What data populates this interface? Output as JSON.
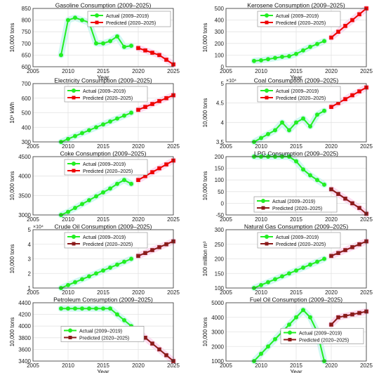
{
  "chart_data": [
    {
      "type": "line",
      "title": "Gasoline Consumption (2009–2025)",
      "xlabel": "Year",
      "ylabel": "10,000 tons",
      "xlim": [
        2005,
        2025
      ],
      "ylim": [
        600,
        850
      ],
      "xticks": [
        2005,
        2010,
        2015,
        2020,
        2025
      ],
      "yticks": [
        600,
        650,
        700,
        750,
        800,
        850
      ],
      "ytick_labels": [
        "600",
        "650",
        "700",
        "750",
        "800",
        "850"
      ],
      "grid": true,
      "legend_position": "top-right",
      "series": [
        {
          "name": "Actual (2009–2019)",
          "style": "actual-green",
          "x": [
            2009,
            2010,
            2011,
            2012,
            2013,
            2014,
            2015,
            2016,
            2017,
            2018,
            2019
          ],
          "y": [
            650,
            800,
            810,
            800,
            790,
            700,
            700,
            710,
            730,
            685,
            690
          ]
        },
        {
          "name": "Predicted (2020–2025)",
          "style": "pred-red",
          "x": [
            2020,
            2021,
            2022,
            2023,
            2024,
            2025
          ],
          "y": [
            680,
            670,
            660,
            650,
            630,
            610
          ]
        }
      ]
    },
    {
      "type": "line",
      "title": "Kerosene Consumption (2009–2025)",
      "xlabel": "Year",
      "ylabel": "10,000 tons",
      "xlim": [
        2005,
        2025
      ],
      "ylim": [
        0,
        500
      ],
      "xticks": [
        2005,
        2010,
        2015,
        2020,
        2025
      ],
      "yticks": [
        0,
        100,
        200,
        300,
        400,
        500
      ],
      "ytick_labels": [
        "0",
        "100",
        "200",
        "300",
        "400",
        "500"
      ],
      "grid": true,
      "legend_position": "top-left",
      "series": [
        {
          "name": "Actual (2009–2019)",
          "style": "actual-green",
          "x": [
            2009,
            2010,
            2011,
            2012,
            2013,
            2014,
            2015,
            2016,
            2017,
            2018,
            2019
          ],
          "y": [
            50,
            55,
            65,
            75,
            85,
            90,
            110,
            140,
            170,
            195,
            220
          ]
        },
        {
          "name": "Predicted (2020–2025)",
          "style": "pred-red",
          "x": [
            2020,
            2021,
            2022,
            2023,
            2024,
            2025
          ],
          "y": [
            250,
            300,
            350,
            400,
            450,
            500
          ]
        }
      ]
    },
    {
      "type": "line",
      "title": "Electricity Consumption (2009–2025)",
      "xlabel": "",
      "ylabel": "10⁹ kWh",
      "xlim": [
        2005,
        2025
      ],
      "ylim": [
        300,
        700
      ],
      "xticks": [
        2005,
        2010,
        2015,
        2020,
        2025
      ],
      "yticks": [
        300,
        400,
        500,
        600,
        700
      ],
      "ytick_labels": [
        "300",
        "400",
        "500",
        "600",
        "700"
      ],
      "grid": true,
      "legend_position": "top-left",
      "series": [
        {
          "name": "Actual (2009–2019)",
          "style": "actual-green",
          "x": [
            2009,
            2010,
            2011,
            2012,
            2013,
            2014,
            2015,
            2016,
            2017,
            2018,
            2019
          ],
          "y": [
            300,
            320,
            340,
            360,
            380,
            400,
            420,
            440,
            460,
            480,
            500
          ]
        },
        {
          "name": "Predicted (2020–2025)",
          "style": "pred-red",
          "x": [
            2020,
            2021,
            2022,
            2023,
            2024,
            2025
          ],
          "y": [
            520,
            540,
            560,
            580,
            600,
            620
          ]
        }
      ]
    },
    {
      "type": "line",
      "title": "Coal Consumption (2009–2025)",
      "xlabel": "",
      "ylabel": "10,000 tons",
      "xlim": [
        2005,
        2025
      ],
      "ylim": [
        3.5,
        5
      ],
      "axis_multiplier": "×10⁴",
      "xticks": [
        2005,
        2010,
        2015,
        2020,
        2025
      ],
      "yticks": [
        3.5,
        4,
        4.5,
        5
      ],
      "ytick_labels": [
        "3.5",
        "4",
        "4.5",
        "5"
      ],
      "grid": true,
      "legend_position": "top-left",
      "series": [
        {
          "name": "Actual (2009–2019)",
          "style": "actual-green",
          "x": [
            2009,
            2010,
            2011,
            2012,
            2013,
            2014,
            2015,
            2016,
            2017,
            2018,
            2019
          ],
          "y": [
            3.5,
            3.6,
            3.7,
            3.8,
            4.0,
            3.8,
            4.0,
            4.1,
            3.9,
            4.2,
            4.3
          ]
        },
        {
          "name": "Predicted (2020–2025)",
          "style": "pred-red",
          "x": [
            2020,
            2021,
            2022,
            2023,
            2024,
            2025
          ],
          "y": [
            4.4,
            4.5,
            4.6,
            4.7,
            4.8,
            4.9
          ]
        }
      ]
    },
    {
      "type": "line",
      "title": "Coke Consumption (2009–2025)",
      "xlabel": "",
      "ylabel": "10,000 tons",
      "xlim": [
        2005,
        2025
      ],
      "ylim": [
        3000,
        4500
      ],
      "xticks": [
        2005,
        2010,
        2015,
        2020,
        2025
      ],
      "yticks": [
        3000,
        3500,
        4000,
        4500
      ],
      "ytick_labels": [
        "3000",
        "3500",
        "4000",
        "4500"
      ],
      "grid": true,
      "legend_position": "top-left",
      "series": [
        {
          "name": "Actual (2009–2019)",
          "style": "actual-green",
          "x": [
            2009,
            2010,
            2011,
            2012,
            2013,
            2014,
            2015,
            2016,
            2017,
            2018,
            2019
          ],
          "y": [
            3000,
            3080,
            3180,
            3280,
            3380,
            3480,
            3580,
            3680,
            3800,
            3900,
            3800
          ]
        },
        {
          "name": "Predicted (2020–2025)",
          "style": "pred-red",
          "x": [
            2020,
            2021,
            2022,
            2023,
            2024,
            2025
          ],
          "y": [
            3900,
            4000,
            4100,
            4200,
            4300,
            4400
          ]
        }
      ]
    },
    {
      "type": "line",
      "title": "LPG Consumption (2009–2025)",
      "xlabel": "",
      "ylabel": "10,000 tons",
      "xlim": [
        2005,
        2025
      ],
      "ylim": [
        -50,
        200
      ],
      "xticks": [
        2005,
        2010,
        2015,
        2020,
        2025
      ],
      "yticks": [
        -50,
        0,
        50,
        100,
        150,
        200
      ],
      "ytick_labels": [
        "-50",
        "0",
        "50",
        "100",
        "150",
        "200"
      ],
      "grid": true,
      "legend_position": "bottom-left",
      "series": [
        {
          "name": "Actual (2009–2019)",
          "style": "actual-green",
          "x": [
            2009,
            2010,
            2011,
            2012,
            2013,
            2014,
            2015,
            2016,
            2017,
            2018,
            2019
          ],
          "y": [
            200,
            200,
            200,
            200,
            200,
            200,
            180,
            145,
            120,
            100,
            80
          ]
        },
        {
          "name": "Predicted (2020–2025)",
          "style": "pred-maroon",
          "x": [
            2020,
            2021,
            2022,
            2023,
            2024,
            2025
          ],
          "y": [
            60,
            40,
            20,
            0,
            -20,
            -45
          ]
        }
      ]
    },
    {
      "type": "line",
      "title": "Crude Oil Consumption (2009–2025)",
      "xlabel": "",
      "ylabel": "10,000 tons",
      "xlim": [
        2005,
        2025
      ],
      "ylim": [
        1,
        5
      ],
      "axis_multiplier": "×10⁴",
      "xticks": [
        2005,
        2010,
        2015,
        2020,
        2025
      ],
      "yticks": [
        1,
        2,
        3,
        4,
        5
      ],
      "ytick_labels": [
        "1",
        "2",
        "3",
        "4",
        "5"
      ],
      "grid": true,
      "legend_position": "top-left",
      "series": [
        {
          "name": "Actual (2009–2019)",
          "style": "actual-green",
          "x": [
            2009,
            2010,
            2011,
            2012,
            2013,
            2014,
            2015,
            2016,
            2017,
            2018,
            2019
          ],
          "y": [
            1.0,
            1.2,
            1.4,
            1.6,
            1.8,
            2.0,
            2.2,
            2.4,
            2.6,
            2.8,
            3.0
          ]
        },
        {
          "name": "Predicted (2020–2025)",
          "style": "pred-maroon",
          "x": [
            2020,
            2021,
            2022,
            2023,
            2024,
            2025
          ],
          "y": [
            3.2,
            3.4,
            3.6,
            3.8,
            4.0,
            4.2
          ]
        }
      ]
    },
    {
      "type": "line",
      "title": "Natural Gas Consumption (2009–2025)",
      "xlabel": "",
      "ylabel": "100 million m³",
      "xlim": [
        2005,
        2025
      ],
      "ylim": [
        100,
        300
      ],
      "xticks": [
        2005,
        2010,
        2015,
        2020,
        2025
      ],
      "yticks": [
        100,
        150,
        200,
        250,
        300
      ],
      "ytick_labels": [
        "100",
        "150",
        "200",
        "250",
        "300"
      ],
      "grid": true,
      "legend_position": "top-left",
      "series": [
        {
          "name": "Actual (2009–2019)",
          "style": "actual-green",
          "x": [
            2009,
            2010,
            2011,
            2012,
            2013,
            2014,
            2015,
            2016,
            2017,
            2018,
            2019
          ],
          "y": [
            100,
            110,
            120,
            130,
            140,
            150,
            160,
            170,
            180,
            190,
            200
          ]
        },
        {
          "name": "Predicted (2020–2025)",
          "style": "pred-maroon",
          "x": [
            2020,
            2021,
            2022,
            2023,
            2024,
            2025
          ],
          "y": [
            210,
            220,
            230,
            240,
            250,
            260
          ]
        }
      ]
    },
    {
      "type": "line",
      "title": "Petroleum Consumption (2009–2025)",
      "xlabel": "Year",
      "ylabel": "10,000 tons",
      "xlim": [
        2005,
        2025
      ],
      "ylim": [
        3400,
        4400
      ],
      "xticks": [
        2005,
        2010,
        2015,
        2020,
        2025
      ],
      "yticks": [
        3400,
        3600,
        3800,
        4000,
        4200,
        4400
      ],
      "ytick_labels": [
        "3400",
        "3600",
        "3800",
        "4000",
        "4200",
        "4400"
      ],
      "grid": true,
      "legend_position": "center-left",
      "series": [
        {
          "name": "Actual (2009–2019)",
          "style": "actual-green",
          "x": [
            2009,
            2010,
            2011,
            2012,
            2013,
            2014,
            2015,
            2016,
            2017,
            2018,
            2019
          ],
          "y": [
            4300,
            4300,
            4300,
            4300,
            4300,
            4300,
            4300,
            4300,
            4200,
            4100,
            4000
          ]
        },
        {
          "name": "Predicted (2020–2025)",
          "style": "pred-maroon",
          "x": [
            2020,
            2021,
            2022,
            2023,
            2024,
            2025
          ],
          "y": [
            3900,
            3800,
            3700,
            3600,
            3500,
            3400
          ]
        }
      ]
    },
    {
      "type": "line",
      "title": "Fuel Oil Consumption (2009–2025)",
      "xlabel": "Year",
      "ylabel": "10,000 tons",
      "xlim": [
        2005,
        2025
      ],
      "ylim": [
        1000,
        5000
      ],
      "xticks": [
        2005,
        2010,
        2015,
        2020,
        2025
      ],
      "yticks": [
        1000,
        2000,
        3000,
        4000,
        5000
      ],
      "ytick_labels": [
        "1000",
        "2000",
        "3000",
        "4000",
        "5000"
      ],
      "grid": true,
      "legend_position": "center-right",
      "series": [
        {
          "name": "Actual (2009–2019)",
          "style": "actual-green",
          "x": [
            2009,
            2010,
            2011,
            2012,
            2013,
            2014,
            2015,
            2016,
            2017,
            2018,
            2019
          ],
          "y": [
            1000,
            1500,
            2000,
            2500,
            3000,
            3500,
            4000,
            4500,
            4000,
            3000,
            1000
          ]
        },
        {
          "name": "Predicted (2020–2025)",
          "style": "pred-maroon",
          "x": [
            2020,
            2021,
            2022,
            2023,
            2024,
            2025
          ],
          "y": [
            3500,
            4000,
            4100,
            4200,
            4300,
            4400
          ]
        }
      ]
    }
  ],
  "colors": {
    "actual": "#22ee22",
    "pred_red": "#ee0000",
    "pred_maroon": "#8b1a1a",
    "grid": "#e3e3e3",
    "axis": "#333333",
    "highlight_actual": "#c8f7f0",
    "highlight_pred": "#fbd3ec"
  }
}
